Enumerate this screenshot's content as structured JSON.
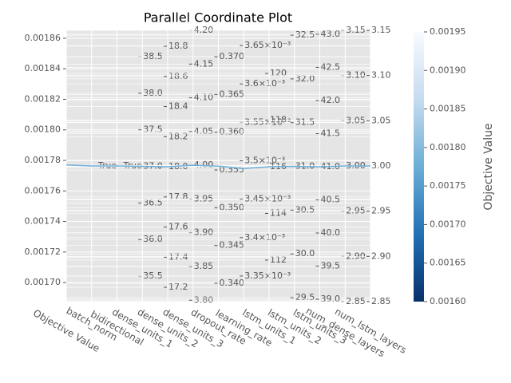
{
  "chart_data": {
    "type": "parallel",
    "title": "Parallel Coordinate Plot",
    "axes": [
      {
        "name": "Objective Value",
        "lim": [
          0.0016875,
          0.0018652
        ],
        "ticks": [
          {
            "value": 0.0017,
            "label": "0.00170"
          },
          0.00172,
          0.00174,
          0.00176,
          0.00178,
          {
            "value": 0.0018,
            "label": "0.00180"
          },
          0.00182,
          0.00184,
          0.00186
        ]
      },
      {
        "name": "batch_norm",
        "categories": [
          "True"
        ]
      },
      {
        "name": "bidirectional",
        "categories": [
          "True"
        ]
      },
      {
        "name": "dense_units_1",
        "lim": [
          35.152,
          38.86
        ],
        "ticks": [
          35.5,
          {
            "value": 36,
            "label": "36.0"
          },
          36.5,
          {
            "value": 37,
            "label": "37.0"
          },
          37.5,
          {
            "value": 38,
            "label": "38.0"
          },
          38.5
        ]
      },
      {
        "name": "dense_units_2",
        "lim": [
          17.105,
          18.906
        ],
        "ticks": [
          17.2,
          17.4,
          17.6,
          17.8,
          {
            "value": 18,
            "label": "18.0"
          },
          18.2,
          18.4,
          18.6,
          18.8
        ]
      },
      {
        "name": "dense_units_3",
        "lim": [
          3.798,
          4.2
        ],
        "ticks": [
          {
            "value": 3.8,
            "label": "3.80"
          },
          3.85,
          {
            "value": 3.9,
            "label": "3.90"
          },
          3.95,
          {
            "value": 4,
            "label": "4.00"
          },
          4.05,
          {
            "value": 4.1,
            "label": "4.10"
          },
          4.15,
          {
            "value": 4.2,
            "label": "4.20"
          }
        ]
      },
      {
        "name": "dropout_rate",
        "lim": [
          0.33757,
          0.37349
        ],
        "ticks": [
          {
            "value": 0.34,
            "label": "0.340"
          },
          0.345,
          {
            "value": 0.35,
            "label": "0.350"
          },
          0.355,
          {
            "value": 0.36,
            "label": "0.360"
          },
          0.365,
          {
            "value": 0.37,
            "label": "0.370"
          }
        ]
      },
      {
        "name": "learning_rate",
        "lim": [
          0.0033167,
          0.0036698
        ],
        "ticks": [
          {
            "value": 0.00335,
            "label": "3.35×10⁻³"
          },
          {
            "value": 0.0034,
            "label": "3.4×10⁻³"
          },
          {
            "value": 0.00345,
            "label": "3.45×10⁻³"
          },
          {
            "value": 0.0035,
            "label": "3.5×10⁻³"
          },
          {
            "value": 0.00355,
            "label": "3.55×10⁻³"
          },
          {
            "value": 0.0036,
            "label": "3.6×10⁻³"
          },
          {
            "value": 0.00365,
            "label": "3.65×10⁻³"
          }
        ]
      },
      {
        "name": "lstm_units_1",
        "lim": [
          110.22,
          121.85
        ],
        "ticks": [
          112,
          114,
          116,
          118,
          120
        ]
      },
      {
        "name": "lstm_units_2",
        "lim": [
          29.455,
          32.555
        ],
        "ticks": [
          29.5,
          {
            "value": 30,
            "label": "30.0"
          },
          30.5,
          {
            "value": 31,
            "label": "31.0"
          },
          31.5,
          {
            "value": 32,
            "label": "32.0"
          },
          32.5
        ]
      },
      {
        "name": "lstm_units_3",
        "lim": [
          38.964,
          43.06
        ],
        "ticks": [
          {
            "value": 39,
            "label": "39.0"
          },
          39.5,
          {
            "value": 40,
            "label": "40.0"
          },
          40.5,
          {
            "value": 41,
            "label": "41.0"
          },
          41.5,
          {
            "value": 42,
            "label": "42.0"
          },
          42.5,
          {
            "value": 43,
            "label": "43.0"
          }
        ]
      },
      {
        "name": "num_dense_layers",
        "lim": [
          2.85,
          3.15
        ],
        "ticks": [
          2.85,
          {
            "value": 2.9,
            "label": "2.90"
          },
          2.95,
          {
            "value": 3,
            "label": "3.00"
          },
          3.05,
          {
            "value": 3.1,
            "label": "3.10"
          },
          3.15
        ]
      },
      {
        "name": "num_lstm_layers",
        "lim": [
          2.85,
          3.15
        ],
        "ticks": [
          2.85,
          {
            "value": 2.9,
            "label": "2.90"
          },
          2.95,
          {
            "value": 3,
            "label": "3.00"
          },
          3.05,
          {
            "value": 3.1,
            "label": "3.10"
          },
          3.15
        ]
      }
    ],
    "series": [
      {
        "values": [
          0.001777,
          "True",
          "True",
          37,
          18,
          4,
          0.3555,
          0.00349,
          116,
          31,
          41,
          3,
          3
        ]
      }
    ],
    "colorbar": {
      "label": "Objective Value",
      "lim": [
        0.0016,
        0.00195
      ],
      "ticks": [
        {
          "value": 0.0016,
          "label": "0.00160"
        },
        0.00165,
        {
          "value": 0.0017,
          "label": "0.00170"
        },
        0.00175,
        {
          "value": 0.0018,
          "label": "0.00180"
        },
        0.00185,
        {
          "value": 0.0019,
          "label": "0.00190"
        },
        0.00195
      ],
      "colormap": [
        "#08306b",
        "#2171b5",
        "#6baed6",
        "#c6dbef",
        "#f7fbff"
      ]
    }
  }
}
